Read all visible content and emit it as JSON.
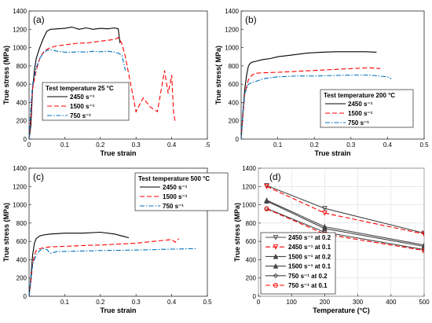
{
  "chart_data": [
    {
      "type": "line",
      "panel_label": "(a)",
      "title": "",
      "xlabel": "True strain",
      "ylabel": "True stress (MPa)",
      "xlim": [
        0,
        0.5
      ],
      "ylim": [
        0,
        1400
      ],
      "xticks": [
        0,
        0.1,
        0.2,
        0.3,
        0.4,
        0.5
      ],
      "xticklabels": [
        "0",
        "0.1",
        "0.2",
        "0.3",
        "0.4",
        ".5"
      ],
      "yticks": [
        0,
        200,
        400,
        600,
        800,
        1000,
        1200,
        1400
      ],
      "yticklabels": [
        "0",
        "200",
        "400",
        "600",
        "800",
        "1000",
        "1200",
        "1400"
      ],
      "legend_title": "Test temperature 25 °C",
      "legend_position": "center",
      "series": [
        {
          "name": "2450 s⁻¹",
          "color": "#000000",
          "dash": "solid",
          "x": [
            0,
            0.005,
            0.01,
            0.015,
            0.02,
            0.03,
            0.04,
            0.05,
            0.06,
            0.08,
            0.1,
            0.12,
            0.14,
            0.16,
            0.18,
            0.2,
            0.22,
            0.24,
            0.25,
            0.255
          ],
          "y": [
            0,
            150,
            550,
            750,
            880,
            1000,
            1100,
            1180,
            1200,
            1205,
            1210,
            1225,
            1200,
            1215,
            1200,
            1210,
            1205,
            1215,
            1205,
            1050
          ]
        },
        {
          "name": "1500 s⁻¹",
          "color": "#ff0000",
          "dash": "dashed",
          "x": [
            0,
            0.005,
            0.01,
            0.02,
            0.03,
            0.04,
            0.05,
            0.06,
            0.08,
            0.1,
            0.12,
            0.14,
            0.16,
            0.18,
            0.2,
            0.22,
            0.24,
            0.25,
            0.26,
            0.27,
            0.28,
            0.29,
            0.3,
            0.32,
            0.34,
            0.36,
            0.38,
            0.39,
            0.4,
            0.405,
            0.41
          ],
          "y": [
            0,
            250,
            550,
            750,
            880,
            950,
            980,
            1000,
            1020,
            1030,
            1040,
            1050,
            1050,
            1060,
            1070,
            1080,
            1090,
            1110,
            1050,
            900,
            700,
            500,
            300,
            450,
            350,
            300,
            750,
            500,
            700,
            300,
            180
          ]
        },
        {
          "name": "750 s⁻¹",
          "color": "#0072BD",
          "dash": "dashdot",
          "x": [
            0,
            0.005,
            0.01,
            0.02,
            0.03,
            0.04,
            0.05,
            0.06,
            0.08,
            0.1,
            0.12,
            0.14,
            0.16,
            0.18,
            0.2,
            0.22,
            0.24,
            0.25,
            0.26,
            0.27
          ],
          "y": [
            0,
            350,
            600,
            780,
            880,
            940,
            970,
            975,
            960,
            950,
            950,
            955,
            950,
            960,
            955,
            960,
            950,
            940,
            920,
            750
          ]
        }
      ]
    },
    {
      "type": "line",
      "panel_label": "(b)",
      "title": "",
      "xlabel": "True strain",
      "ylabel": "True stress( MPa)",
      "xlim": [
        0,
        0.5
      ],
      "ylim": [
        0,
        1400
      ],
      "xticks": [
        0.1,
        0.2,
        0.3,
        0.4,
        0.5
      ],
      "xticklabels": [
        "0.1",
        "0.2",
        "0.3",
        "0.4",
        "0.5"
      ],
      "yticks": [
        0,
        200,
        400,
        600,
        800,
        1000,
        1200,
        1400
      ],
      "yticklabels": [
        "0",
        "200",
        "400",
        "600",
        "800",
        "1000",
        "1200",
        "1400"
      ],
      "legend_title": "Test temperature 200 °C",
      "legend_position": "right",
      "series": [
        {
          "name": "2450 s⁻¹",
          "color": "#000000",
          "dash": "solid",
          "x": [
            0,
            0.005,
            0.01,
            0.015,
            0.02,
            0.025,
            0.03,
            0.04,
            0.06,
            0.08,
            0.1,
            0.14,
            0.18,
            0.22,
            0.26,
            0.3,
            0.34,
            0.37
          ],
          "y": [
            0,
            300,
            550,
            700,
            800,
            830,
            840,
            850,
            870,
            880,
            900,
            920,
            940,
            950,
            955,
            955,
            955,
            950
          ]
        },
        {
          "name": "1500 s⁻¹",
          "color": "#ff0000",
          "dash": "dashed",
          "x": [
            0,
            0.005,
            0.01,
            0.02,
            0.03,
            0.04,
            0.06,
            0.1,
            0.15,
            0.2,
            0.25,
            0.3,
            0.35,
            0.38
          ],
          "y": [
            0,
            250,
            500,
            650,
            700,
            720,
            725,
            730,
            740,
            750,
            760,
            770,
            780,
            770
          ]
        },
        {
          "name": "750 s⁻¹",
          "color": "#0072BD",
          "dash": "dashdot",
          "x": [
            0,
            0.005,
            0.01,
            0.02,
            0.03,
            0.04,
            0.06,
            0.08,
            0.1,
            0.15,
            0.2,
            0.25,
            0.3,
            0.35,
            0.4,
            0.41
          ],
          "y": [
            0,
            300,
            500,
            600,
            620,
            630,
            660,
            670,
            680,
            690,
            690,
            695,
            700,
            700,
            680,
            660
          ]
        }
      ]
    },
    {
      "type": "line",
      "panel_label": "(c)",
      "title": "",
      "xlabel": "True strain",
      "ylabel": "True stress (MPa)",
      "xlim": [
        0,
        0.5
      ],
      "ylim": [
        0,
        1400
      ],
      "xticks": [
        0.1,
        0.2,
        0.3,
        0.4,
        0.5
      ],
      "xticklabels": [
        "0.1",
        "0.2",
        "0.3",
        "0.4",
        "0.5"
      ],
      "yticks": [
        0,
        200,
        400,
        600,
        800,
        1000,
        1200,
        1400
      ],
      "yticklabels": [
        "0",
        "200",
        "400",
        "600",
        "800",
        "1000",
        "1200",
        "1400"
      ],
      "legend_title": "Test temperature 500 °C",
      "legend_position": "top-right",
      "series": [
        {
          "name": "2450 s⁻¹",
          "color": "#000000",
          "dash": "solid",
          "x": [
            0,
            0.005,
            0.01,
            0.015,
            0.02,
            0.03,
            0.04,
            0.06,
            0.1,
            0.15,
            0.2,
            0.24,
            0.26,
            0.28
          ],
          "y": [
            0,
            200,
            450,
            580,
            630,
            660,
            670,
            680,
            690,
            690,
            700,
            680,
            660,
            640
          ]
        },
        {
          "name": "1500 s⁻¹",
          "color": "#ff0000",
          "dash": "dashed",
          "x": [
            0,
            0.005,
            0.01,
            0.015,
            0.02,
            0.03,
            0.04,
            0.06,
            0.1,
            0.15,
            0.2,
            0.25,
            0.3,
            0.35,
            0.4,
            0.41,
            0.42
          ],
          "y": [
            0,
            150,
            350,
            450,
            500,
            520,
            530,
            540,
            545,
            555,
            560,
            570,
            580,
            600,
            620,
            590,
            630
          ]
        },
        {
          "name": "750 s⁻¹",
          "color": "#0072BD",
          "dash": "dashdot",
          "x": [
            0,
            0.005,
            0.01,
            0.02,
            0.03,
            0.04,
            0.05,
            0.06,
            0.08,
            0.1,
            0.15,
            0.2,
            0.3,
            0.4,
            0.45,
            0.47
          ],
          "y": [
            0,
            180,
            350,
            450,
            500,
            520,
            510,
            470,
            490,
            490,
            495,
            500,
            505,
            515,
            520,
            520
          ]
        }
      ]
    },
    {
      "type": "line",
      "panel_label": "(d)",
      "title": "",
      "xlabel": "Temperature (°C)",
      "ylabel": "True stress (MPa)",
      "xlim": [
        0,
        500
      ],
      "ylim": [
        0,
        1400
      ],
      "xticks": [
        0,
        100,
        200,
        300,
        400,
        500
      ],
      "xticklabels": [
        "0",
        "100",
        "200",
        "300",
        "400",
        "500"
      ],
      "yticks": [
        0,
        200,
        400,
        600,
        800,
        1000,
        1200,
        1400
      ],
      "yticklabels": [
        "0",
        "200",
        "400",
        "600",
        "800",
        "1000",
        "1200",
        "1400"
      ],
      "grid": true,
      "legend_position": "bottom-left",
      "x": [
        25,
        200,
        500
      ],
      "series": [
        {
          "name": "2450 s⁻¹ at 0.2",
          "color": "#444444",
          "dash": "solid",
          "marker": "triangle-down",
          "y": [
            1210,
            960,
            690
          ]
        },
        {
          "name": "2450 s⁻¹ at 0.1",
          "color": "#ff0000",
          "dash": "dashed",
          "marker": "triangle-down",
          "y": [
            1200,
            910,
            680
          ]
        },
        {
          "name": "1500 s⁻¹ at 0.2",
          "color": "#444444",
          "dash": "solid",
          "marker": "triangle-up",
          "y": [
            1050,
            760,
            560
          ]
        },
        {
          "name": "1500 s⁻¹ at 0.1",
          "color": "#444444",
          "dash": "solid",
          "marker": "triangle-up",
          "y": [
            1040,
            740,
            545
          ]
        },
        {
          "name": "750 s⁻¹ at 0.2",
          "color": "#444444",
          "dash": "solid",
          "marker": "diamond",
          "y": [
            960,
            700,
            510
          ]
        },
        {
          "name": "750 s⁻¹ at 0.1",
          "color": "#ff0000",
          "dash": "dashed",
          "marker": "circle",
          "y": [
            955,
            680,
            500
          ]
        }
      ]
    }
  ]
}
